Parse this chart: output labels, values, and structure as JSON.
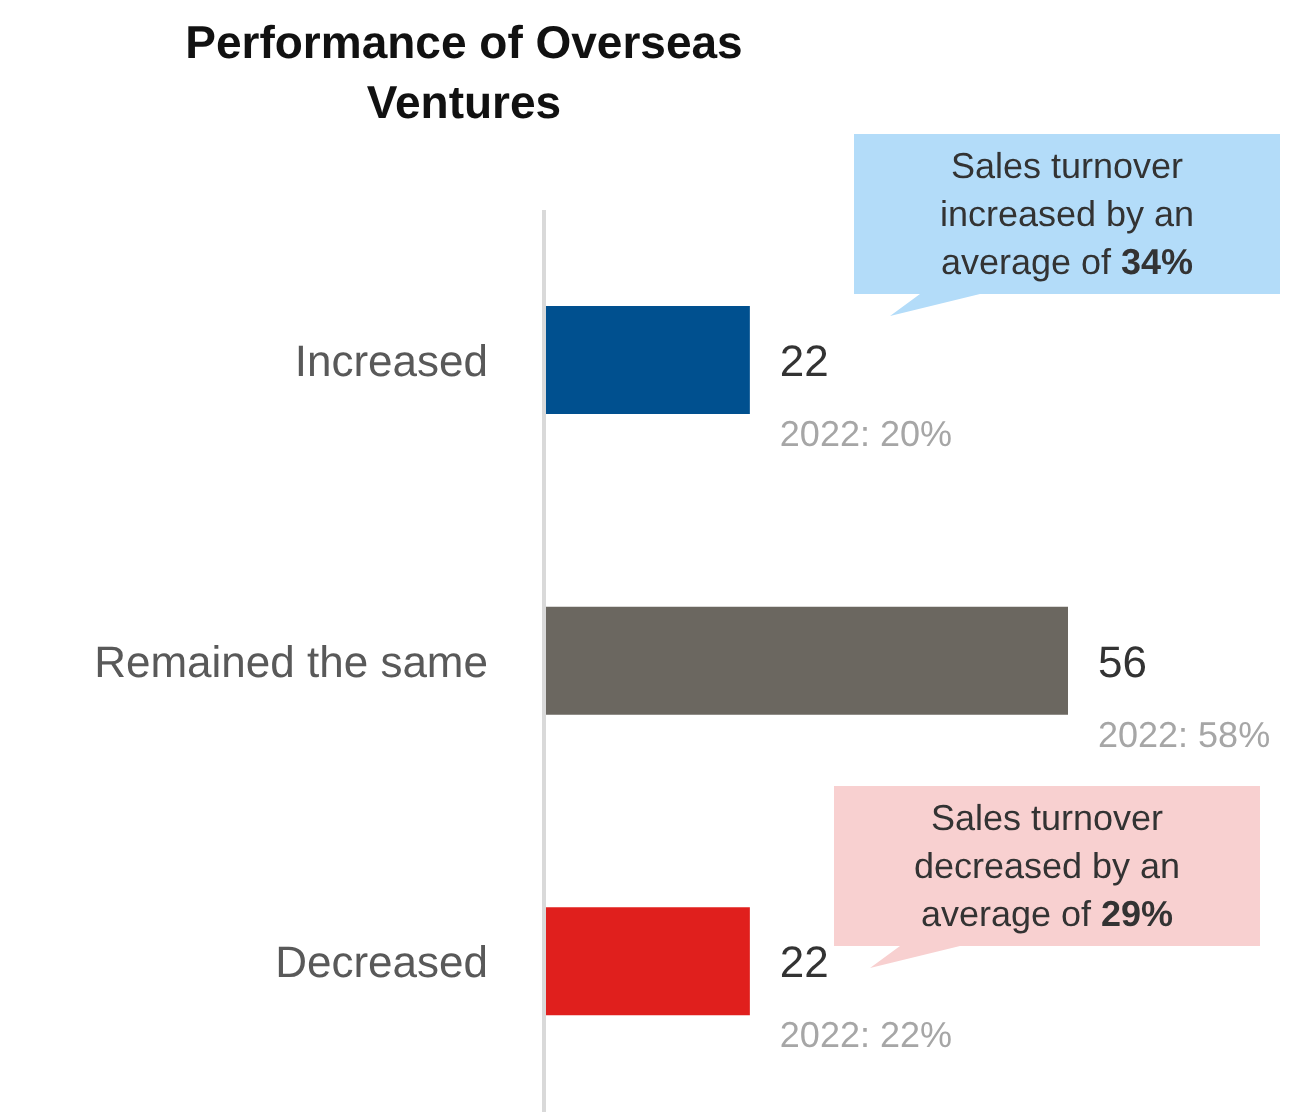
{
  "chart_data": {
    "type": "bar",
    "orientation": "horizontal",
    "title": "Performance of Overseas Ventures",
    "categories": [
      "Increased",
      "Remained the same",
      "Decreased"
    ],
    "values": [
      22,
      56,
      22
    ],
    "colors": [
      "#00508f",
      "#6b6760",
      "#e01f1d"
    ],
    "data_labels": true,
    "annotations": [
      "Sales turnover increased by an average of 34%",
      "Sales turnover decreased by an average of 29%",
      "2022: 20%",
      "2022: 58%",
      "2022: 22%"
    ]
  }
}
